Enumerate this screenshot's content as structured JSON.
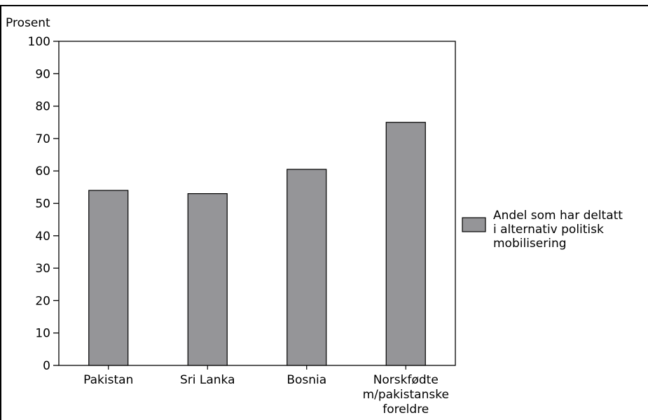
{
  "chart_data": {
    "type": "bar",
    "ylabel": "Prosent",
    "xlabel": "",
    "ylim": [
      0,
      100
    ],
    "yticks": [
      0,
      10,
      20,
      30,
      40,
      50,
      60,
      70,
      80,
      90,
      100
    ],
    "categories": [
      [
        "Pakistan"
      ],
      [
        "Sri Lanka"
      ],
      [
        "Bosnia"
      ],
      [
        "Norskfødte",
        "m/pakistanske",
        "foreldre"
      ]
    ],
    "series": [
      {
        "name": "Andel som har deltatt i alternativ politisk mobilisering",
        "legend_lines": [
          "Andel som har deltatt",
          "i alternativ politisk",
          "mobilisering"
        ],
        "color": "#959598",
        "values": [
          54,
          53,
          60.5,
          75
        ]
      }
    ],
    "grid": false,
    "legend_position": "right"
  }
}
